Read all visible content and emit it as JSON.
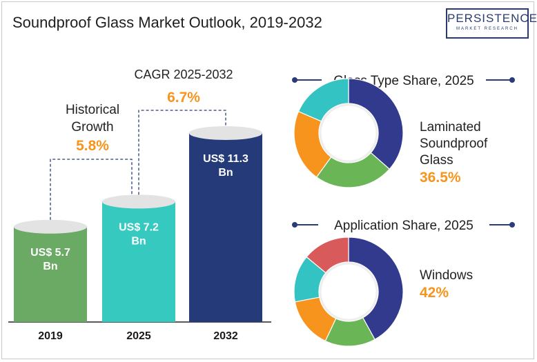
{
  "title": "Soundproof Glass Market Outlook, 2019-2032",
  "logo": {
    "main": "PERSISTENCE",
    "sub": "MARKET RESEARCH"
  },
  "colors": {
    "bar_2019": "#6aaa64",
    "bar_2025": "#36c9c0",
    "bar_2032": "#253a78",
    "accent": "#f7941d",
    "navy": "#313a8c",
    "green": "#6ab556",
    "orange": "#f7941d",
    "teal": "#34c3c3",
    "red": "#d95a5a"
  },
  "annotations": {
    "historical_label_line1": "Historical",
    "historical_label_line2": "Growth",
    "historical_value": "5.8%",
    "cagr_label": "CAGR 2025-2032",
    "cagr_value": "6.7%"
  },
  "chart_data": [
    {
      "type": "bar",
      "title": "",
      "categories": [
        "2019",
        "2025",
        "2032"
      ],
      "values": [
        5.7,
        7.2,
        11.3
      ],
      "labels": [
        [
          "US$ 5.7",
          "Bn"
        ],
        [
          "US$ 7.2",
          "Bn"
        ],
        [
          "US$ 11.3",
          "Bn"
        ]
      ],
      "unit": "US$ Bn"
    },
    {
      "type": "pie",
      "title": "Glass Type Share, 2025",
      "highlight_label_lines": [
        "Laminated",
        "Soundproof",
        "Glass"
      ],
      "highlight_value": "36.5%",
      "slices": [
        {
          "label": "Laminated Soundproof Glass",
          "value": 36.5,
          "color": "#313a8c"
        },
        {
          "label": "",
          "value": 23.5,
          "color": "#6ab556"
        },
        {
          "label": "",
          "value": 21.5,
          "color": "#f7941d"
        },
        {
          "label": "",
          "value": 18.5,
          "color": "#34c3c3"
        }
      ]
    },
    {
      "type": "pie",
      "title": "Application Share, 2025",
      "highlight_label_lines": [
        "Windows"
      ],
      "highlight_value": "42%",
      "slices": [
        {
          "label": "Windows",
          "value": 42,
          "color": "#313a8c"
        },
        {
          "label": "",
          "value": 15,
          "color": "#6ab556"
        },
        {
          "label": "",
          "value": 15,
          "color": "#f7941d"
        },
        {
          "label": "",
          "value": 14,
          "color": "#34c3c3"
        },
        {
          "label": "",
          "value": 14,
          "color": "#d95a5a"
        }
      ]
    }
  ]
}
